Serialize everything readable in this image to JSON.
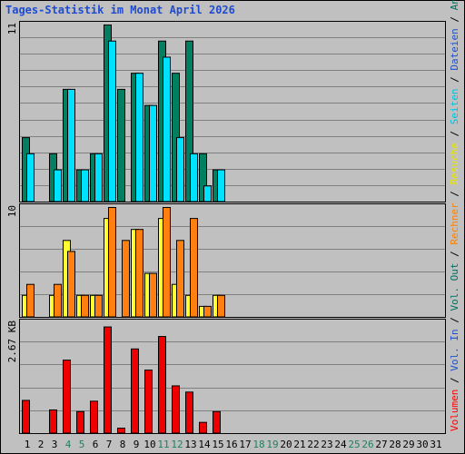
{
  "chart_data": {
    "type": "bar",
    "title": "Tages-Statistik im Monat April 2026",
    "categories": [
      "1",
      "2",
      "3",
      "4",
      "5",
      "6",
      "7",
      "8",
      "9",
      "10",
      "11",
      "12",
      "13",
      "14",
      "15",
      "16",
      "17",
      "18",
      "19",
      "20",
      "21",
      "22",
      "23",
      "24",
      "25",
      "26",
      "27",
      "28",
      "29",
      "30",
      "31"
    ],
    "weekend_days": [
      "4",
      "5",
      "11",
      "12",
      "18",
      "19",
      "25",
      "26"
    ],
    "right_legend": [
      {
        "text": "Volumen",
        "color": "#ff0000"
      },
      {
        "text": " / ",
        "color": "#000000"
      },
      {
        "text": "Vol. In",
        "color": "#1e50c8"
      },
      {
        "text": " / ",
        "color": "#000000"
      },
      {
        "text": "Vol. Out",
        "color": "#007060"
      },
      {
        "text": " / ",
        "color": "#000000"
      },
      {
        "text": "Rechner",
        "color": "#ff8000"
      },
      {
        "text": " / ",
        "color": "#000000"
      },
      {
        "text": "Besuche",
        "color": "#e6e600"
      },
      {
        "text": " / ",
        "color": "#000000"
      },
      {
        "text": "Seiten",
        "color": "#00c0e0"
      },
      {
        "text": " / ",
        "color": "#000000"
      },
      {
        "text": "Dateien",
        "color": "#1e50c8"
      },
      {
        "text": " / ",
        "color": "#000000"
      },
      {
        "text": "Anfragen",
        "color": "#007060"
      }
    ],
    "panels": [
      {
        "id": "hits",
        "ymax": 11,
        "ymax_label": "11",
        "series": [
          {
            "name": "Anfragen",
            "color": "#008060",
            "values": [
              4,
              0,
              3,
              7,
              2,
              3,
              11,
              7,
              8,
              6,
              10,
              8,
              10,
              3,
              2,
              0,
              0,
              0,
              0,
              0,
              0,
              0,
              0,
              0,
              0,
              0,
              0,
              0,
              0,
              0,
              0
            ]
          },
          {
            "name": "Seiten",
            "color": "#00e0ff",
            "values": [
              3,
              0,
              2,
              7,
              2,
              3,
              10,
              0,
              8,
              6,
              9,
              4,
              3,
              1,
              2,
              0,
              0,
              0,
              0,
              0,
              0,
              0,
              0,
              0,
              0,
              0,
              0,
              0,
              0,
              0,
              0
            ]
          }
        ]
      },
      {
        "id": "visits",
        "ymax": 10,
        "ymax_label": "10",
        "series": [
          {
            "name": "Besuche",
            "color": "#ffff33",
            "values": [
              2,
              0,
              2,
              7,
              2,
              2,
              9,
              0,
              8,
              4,
              9,
              3,
              2,
              1,
              2,
              0,
              0,
              0,
              0,
              0,
              0,
              0,
              0,
              0,
              0,
              0,
              0,
              0,
              0,
              0,
              0
            ]
          },
          {
            "name": "Rechner",
            "color": "#ff8010",
            "values": [
              3,
              0,
              3,
              6,
              2,
              2,
              10,
              7,
              8,
              4,
              10,
              7,
              9,
              1,
              2,
              0,
              0,
              0,
              0,
              0,
              0,
              0,
              0,
              0,
              0,
              0,
              0,
              0,
              0,
              0,
              0
            ]
          }
        ]
      },
      {
        "id": "volume",
        "ymax": 2.67,
        "ymax_label": "2.67 KB",
        "series": [
          {
            "name": "Volumen",
            "color": "#ee0000",
            "values": [
              0.8,
              0,
              0.57,
              1.77,
              0.53,
              0.78,
              2.57,
              0.13,
              2.04,
              1.53,
              2.34,
              1.15,
              1.0,
              0.27,
              0.53,
              0,
              0,
              0,
              0,
              0,
              0,
              0,
              0,
              0,
              0,
              0,
              0,
              0,
              0,
              0,
              0
            ]
          }
        ]
      }
    ]
  }
}
